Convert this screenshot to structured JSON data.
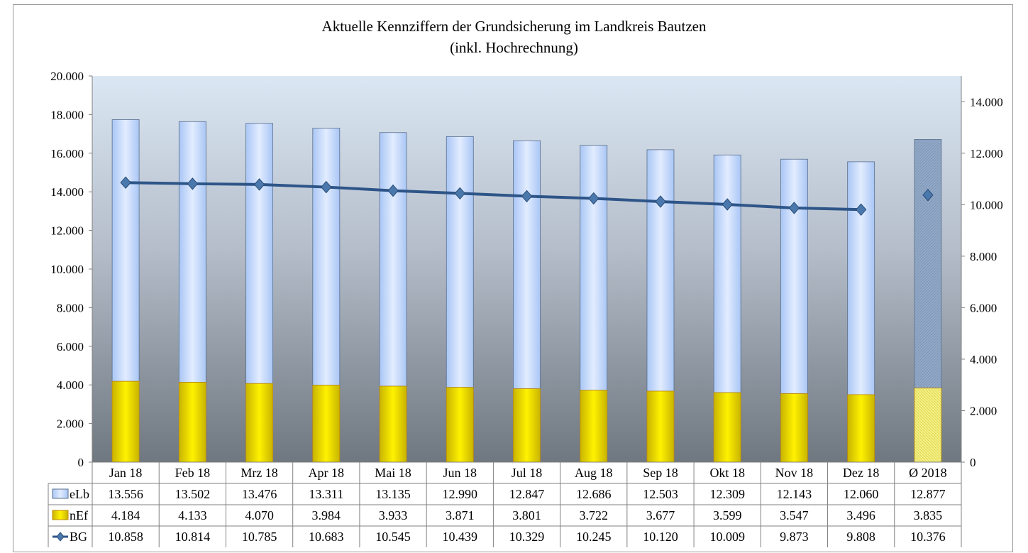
{
  "chart_data": {
    "type": "bar",
    "title": "Aktuelle Kennziffern der Grundsicherung im Landkreis Bautzen",
    "subtitle": "(inkl. Hochrechnung)",
    "categories": [
      "Jan 18",
      "Feb 18",
      "Mrz 18",
      "Apr 18",
      "Mai 18",
      "Jun 18",
      "Jul 18",
      "Aug 18",
      "Sep 18",
      "Okt 18",
      "Nov 18",
      "Dez 18",
      "Ø 2018"
    ],
    "stacked": true,
    "series": [
      {
        "name": "nEf",
        "axis": "left",
        "kind": "bar-stacked",
        "color": "#e8d800",
        "values": [
          4184,
          4133,
          4070,
          3984,
          3933,
          3871,
          3801,
          3722,
          3677,
          3599,
          3547,
          3496,
          3835
        ],
        "labels": [
          "4.184",
          "4.133",
          "4.070",
          "3.984",
          "3.933",
          "3.871",
          "3.801",
          "3.722",
          "3.677",
          "3.599",
          "3.547",
          "3.496",
          "3.835"
        ]
      },
      {
        "name": "eLb",
        "axis": "left",
        "kind": "bar-stacked",
        "color": "#c8dcff",
        "values": [
          13556,
          13502,
          13476,
          13311,
          13135,
          12990,
          12847,
          12686,
          12503,
          12309,
          12143,
          12060,
          12877
        ],
        "labels": [
          "13.556",
          "13.502",
          "13.476",
          "13.311",
          "13.135",
          "12.990",
          "12.847",
          "12.686",
          "12.503",
          "12.309",
          "12.143",
          "12.060",
          "12.877"
        ]
      },
      {
        "name": "BG",
        "axis": "right",
        "kind": "line",
        "color": "#2e5588",
        "values": [
          10858,
          10814,
          10785,
          10683,
          10545,
          10439,
          10329,
          10245,
          10120,
          10009,
          9873,
          9808,
          10376
        ],
        "labels": [
          "10.858",
          "10.814",
          "10.785",
          "10.683",
          "10.545",
          "10.439",
          "10.329",
          "10.245",
          "10.120",
          "10.009",
          "9.873",
          "9.808",
          "10.376"
        ]
      }
    ],
    "y_left": {
      "min": 0,
      "max": 20000,
      "ticks": [
        0,
        2000,
        4000,
        6000,
        8000,
        10000,
        12000,
        14000,
        16000,
        18000,
        20000
      ],
      "tick_labels": [
        "0",
        "2.000",
        "4.000",
        "6.000",
        "8.000",
        "10.000",
        "12.000",
        "14.000",
        "16.000",
        "18.000",
        "20.000"
      ]
    },
    "y_right": {
      "min": 0,
      "max": 15000,
      "ticks": [
        0,
        2000,
        4000,
        6000,
        8000,
        10000,
        12000,
        14000
      ],
      "tick_labels": [
        "0",
        "2.000",
        "4.000",
        "6.000",
        "8.000",
        "10.000",
        "12.000",
        "14.000"
      ]
    },
    "data_table": true,
    "legend_placement": "data table rows",
    "average_column_highlighted": true
  }
}
